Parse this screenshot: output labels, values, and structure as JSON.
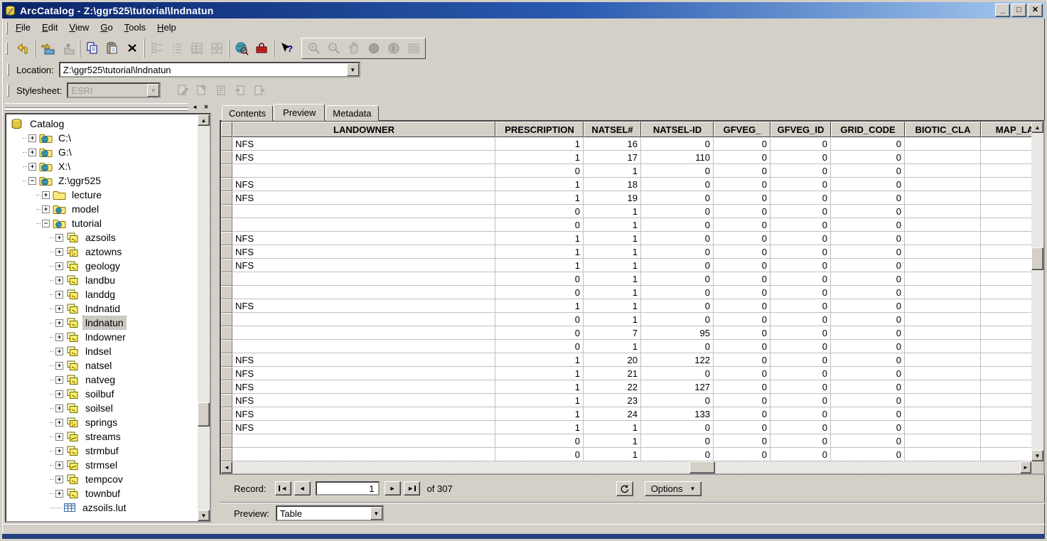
{
  "window": {
    "title": "ArcCatalog - Z:\\ggr525\\tutorial\\lndnatun",
    "controls": [
      "minimize",
      "maximize",
      "close"
    ]
  },
  "menu": {
    "items": [
      "File",
      "Edit",
      "View",
      "Go",
      "Tools",
      "Help"
    ]
  },
  "toolbar": {
    "buttons": [
      {
        "name": "up-one-level",
        "enabled": true
      },
      {
        "name": "connect-to-folder",
        "enabled": true
      },
      {
        "name": "disconnect-from-folder",
        "enabled": false
      },
      {
        "name": "copy",
        "enabled": true
      },
      {
        "name": "paste",
        "enabled": true
      },
      {
        "name": "delete",
        "enabled": true
      },
      {
        "name": "large-icons",
        "enabled": false
      },
      {
        "name": "list",
        "enabled": false
      },
      {
        "name": "details",
        "enabled": false
      },
      {
        "name": "thumbnails",
        "enabled": false
      },
      {
        "name": "launch-arcmap",
        "enabled": true
      },
      {
        "name": "arctoolbox",
        "enabled": true
      },
      {
        "name": "help",
        "enabled": true
      },
      {
        "name": "zoom-in",
        "enabled": false
      },
      {
        "name": "zoom-out",
        "enabled": false
      },
      {
        "name": "pan",
        "enabled": false
      },
      {
        "name": "full-extent",
        "enabled": false
      },
      {
        "name": "identify",
        "enabled": false
      },
      {
        "name": "create-thumbnail",
        "enabled": false
      }
    ]
  },
  "location": {
    "label": "Location:",
    "value": "Z:\\ggr525\\tutorial\\lndnatun"
  },
  "stylesheet": {
    "label": "Stylesheet:",
    "value": "ESRI",
    "buttons": [
      "edit-metadata",
      "metadata-properties",
      "create-metadata",
      "import-metadata",
      "export-metadata"
    ]
  },
  "tree": {
    "items": [
      {
        "label": "Catalog",
        "depth": 0,
        "icon": "catalog",
        "expand": "none"
      },
      {
        "label": "C:\\",
        "depth": 1,
        "icon": "drive",
        "expand": "plus"
      },
      {
        "label": "G:\\",
        "depth": 1,
        "icon": "drive",
        "expand": "plus"
      },
      {
        "label": "X:\\",
        "depth": 1,
        "icon": "drive",
        "expand": "plus"
      },
      {
        "label": "Z:\\ggr525",
        "depth": 1,
        "icon": "drive",
        "expand": "minus"
      },
      {
        "label": "lecture",
        "depth": 2,
        "icon": "folder",
        "expand": "plus"
      },
      {
        "label": "model",
        "depth": 2,
        "icon": "folder-globe",
        "expand": "plus"
      },
      {
        "label": "tutorial",
        "depth": 2,
        "icon": "folder-globe",
        "expand": "minus"
      },
      {
        "label": "azsoils",
        "depth": 3,
        "icon": "coverage",
        "expand": "plus"
      },
      {
        "label": "aztowns",
        "depth": 3,
        "icon": "coverage-point",
        "expand": "plus"
      },
      {
        "label": "geology",
        "depth": 3,
        "icon": "coverage",
        "expand": "plus"
      },
      {
        "label": "landbu",
        "depth": 3,
        "icon": "coverage",
        "expand": "plus"
      },
      {
        "label": "landdg",
        "depth": 3,
        "icon": "coverage",
        "expand": "plus"
      },
      {
        "label": "lndnatid",
        "depth": 3,
        "icon": "coverage",
        "expand": "plus"
      },
      {
        "label": "lndnatun",
        "depth": 3,
        "icon": "coverage",
        "expand": "plus",
        "selected": true
      },
      {
        "label": "lndowner",
        "depth": 3,
        "icon": "coverage",
        "expand": "plus"
      },
      {
        "label": "lndsel",
        "depth": 3,
        "icon": "coverage",
        "expand": "plus"
      },
      {
        "label": "natsel",
        "depth": 3,
        "icon": "coverage",
        "expand": "plus"
      },
      {
        "label": "natveg",
        "depth": 3,
        "icon": "coverage",
        "expand": "plus"
      },
      {
        "label": "soilbuf",
        "depth": 3,
        "icon": "coverage",
        "expand": "plus"
      },
      {
        "label": "soilsel",
        "depth": 3,
        "icon": "coverage",
        "expand": "plus"
      },
      {
        "label": "springs",
        "depth": 3,
        "icon": "coverage-point",
        "expand": "plus"
      },
      {
        "label": "streams",
        "depth": 3,
        "icon": "coverage-line",
        "expand": "plus"
      },
      {
        "label": "strmbuf",
        "depth": 3,
        "icon": "coverage",
        "expand": "plus"
      },
      {
        "label": "strmsel",
        "depth": 3,
        "icon": "coverage-line",
        "expand": "plus"
      },
      {
        "label": "tempcov",
        "depth": 3,
        "icon": "coverage",
        "expand": "plus"
      },
      {
        "label": "townbuf",
        "depth": 3,
        "icon": "coverage",
        "expand": "plus"
      },
      {
        "label": "azsoils.lut",
        "depth": 3,
        "icon": "table",
        "expand": "none"
      }
    ]
  },
  "tabs": [
    {
      "label": "Contents",
      "active": false
    },
    {
      "label": "Preview",
      "active": true
    },
    {
      "label": "Metadata",
      "active": false
    }
  ],
  "table": {
    "columns": [
      "LANDOWNER",
      "PRESCRIPTION",
      "NATSEL#",
      "NATSEL-ID",
      "GFVEG_",
      "GFVEG_ID",
      "GRID_CODE",
      "BIOTIC_CLA",
      "MAP_LA"
    ],
    "rows": [
      [
        "NFS",
        "1",
        "16",
        "0",
        "0",
        "0",
        "0",
        "",
        ""
      ],
      [
        "NFS",
        "1",
        "17",
        "110",
        "0",
        "0",
        "0",
        "",
        ""
      ],
      [
        "",
        "0",
        "1",
        "0",
        "0",
        "0",
        "0",
        "",
        ""
      ],
      [
        "NFS",
        "1",
        "18",
        "0",
        "0",
        "0",
        "0",
        "",
        ""
      ],
      [
        "NFS",
        "1",
        "19",
        "0",
        "0",
        "0",
        "0",
        "",
        ""
      ],
      [
        "",
        "0",
        "1",
        "0",
        "0",
        "0",
        "0",
        "",
        ""
      ],
      [
        "",
        "0",
        "1",
        "0",
        "0",
        "0",
        "0",
        "",
        ""
      ],
      [
        "NFS",
        "1",
        "1",
        "0",
        "0",
        "0",
        "0",
        "",
        ""
      ],
      [
        "NFS",
        "1",
        "1",
        "0",
        "0",
        "0",
        "0",
        "",
        ""
      ],
      [
        "NFS",
        "1",
        "1",
        "0",
        "0",
        "0",
        "0",
        "",
        ""
      ],
      [
        "",
        "0",
        "1",
        "0",
        "0",
        "0",
        "0",
        "",
        ""
      ],
      [
        "",
        "0",
        "1",
        "0",
        "0",
        "0",
        "0",
        "",
        ""
      ],
      [
        "NFS",
        "1",
        "1",
        "0",
        "0",
        "0",
        "0",
        "",
        ""
      ],
      [
        "",
        "0",
        "1",
        "0",
        "0",
        "0",
        "0",
        "",
        ""
      ],
      [
        "",
        "0",
        "7",
        "95",
        "0",
        "0",
        "0",
        "",
        ""
      ],
      [
        "",
        "0",
        "1",
        "0",
        "0",
        "0",
        "0",
        "",
        ""
      ],
      [
        "NFS",
        "1",
        "20",
        "122",
        "0",
        "0",
        "0",
        "",
        ""
      ],
      [
        "NFS",
        "1",
        "21",
        "0",
        "0",
        "0",
        "0",
        "",
        ""
      ],
      [
        "NFS",
        "1",
        "22",
        "127",
        "0",
        "0",
        "0",
        "",
        ""
      ],
      [
        "NFS",
        "1",
        "23",
        "0",
        "0",
        "0",
        "0",
        "",
        ""
      ],
      [
        "NFS",
        "1",
        "24",
        "133",
        "0",
        "0",
        "0",
        "",
        ""
      ],
      [
        "NFS",
        "1",
        "1",
        "0",
        "0",
        "0",
        "0",
        "",
        ""
      ],
      [
        "",
        "0",
        "1",
        "0",
        "0",
        "0",
        "0",
        "",
        ""
      ],
      [
        "",
        "0",
        "1",
        "0",
        "0",
        "0",
        "0",
        "",
        ""
      ]
    ]
  },
  "record_nav": {
    "label": "Record:",
    "value": "1",
    "of_text": "of 307",
    "options_label": "Options"
  },
  "preview_bar": {
    "label": "Preview:",
    "value": "Table"
  }
}
